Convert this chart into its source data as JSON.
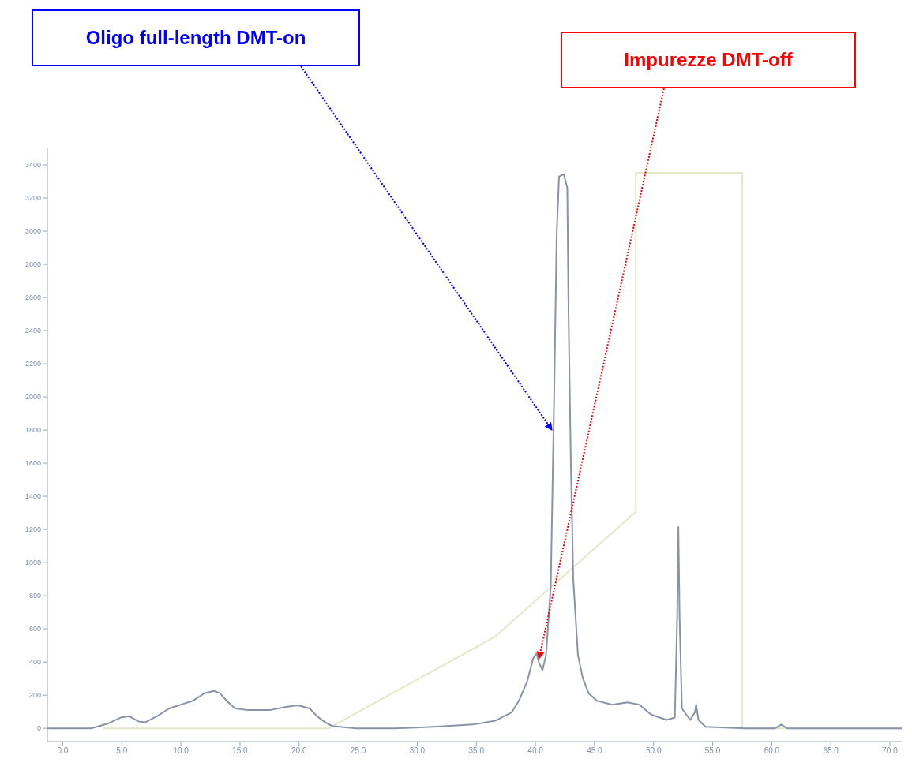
{
  "chart_data": {
    "type": "line",
    "annotations": [
      {
        "text": "Oligo full-length DMT-on",
        "x": 41.4,
        "y": 1800
      },
      {
        "text": "Impurezze DMT-off",
        "x": 40.3,
        "y": 420
      }
    ],
    "xlim": [
      -1.3,
      71
    ],
    "xticks": [
      {
        "value": 0,
        "label": "0.0"
      },
      {
        "value": 5,
        "label": "5.0"
      },
      {
        "value": 10,
        "label": "10.0"
      },
      {
        "value": 15,
        "label": "15.0"
      },
      {
        "value": 20,
        "label": "20.0"
      },
      {
        "value": 25,
        "label": "25.0"
      },
      {
        "value": 30,
        "label": "30.0"
      },
      {
        "value": 35,
        "label": "35.0"
      },
      {
        "value": 40,
        "label": "40.0"
      },
      {
        "value": 45,
        "label": "45.0"
      },
      {
        "value": 50,
        "label": "50.0"
      },
      {
        "value": 55,
        "label": "55.0"
      },
      {
        "value": 60,
        "label": "60.0"
      },
      {
        "value": 65,
        "label": "65.0"
      },
      {
        "value": 70,
        "label": "70.0"
      }
    ],
    "ylim": [
      -80,
      3500
    ],
    "yticks": [
      0,
      200,
      400,
      600,
      800,
      1000,
      1200,
      1400,
      1600,
      1800,
      2000,
      2200,
      2400,
      2600,
      2800,
      3000,
      3200,
      3400
    ],
    "marker": "none",
    "line_style": "solid",
    "series": [
      {
        "color": "#e2e8c8",
        "x": [
          3.4,
          22.5,
          36.6,
          48.5,
          48.5,
          57.5,
          57.5,
          71
        ],
        "values": [
          0,
          0,
          554,
          1307,
          3353,
          3353,
          0,
          0
        ]
      },
      {
        "color": "#8a93a8",
        "x": [
          -1.3,
          2.4,
          3.8,
          4.9,
          5.6,
          6.4,
          7.0,
          8.0,
          9.0,
          10.0,
          11.0,
          12.0,
          12.8,
          13.3,
          14.0,
          14.6,
          15.6,
          17.6,
          18.9,
          19.9,
          20.9,
          21.5,
          22.2,
          22.8,
          24.8,
          28.1,
          31.4,
          34.7,
          36.6,
          38.0,
          38.6,
          39.3,
          39.8,
          40.1,
          40.3,
          40.6,
          40.9,
          41.3,
          41.6,
          41.8,
          42.0,
          42.4,
          42.7,
          42.8,
          43.0,
          43.2,
          43.6,
          44.0,
          44.5,
          45.2,
          46.5,
          47.8,
          48.8,
          49.8,
          51.1,
          51.8,
          52.0,
          52.1,
          52.2,
          52.4,
          53.1,
          53.5,
          53.6,
          53.8,
          54.4,
          57.7,
          60.3,
          60.8,
          61.3,
          71
        ],
        "values": [
          0,
          0,
          28,
          65,
          74,
          42,
          37,
          74,
          120,
          143,
          166,
          212,
          226,
          212,
          157,
          120,
          111,
          111,
          129,
          139,
          120,
          74,
          37,
          14,
          0,
          0,
          9,
          23,
          46,
          97,
          166,
          282,
          420,
          453,
          397,
          351,
          443,
          859,
          2060,
          2984,
          3330,
          3344,
          3261,
          2522,
          1598,
          905,
          443,
          305,
          212,
          166,
          143,
          157,
          143,
          83,
          51,
          65,
          674,
          1215,
          674,
          120,
          51,
          97,
          143,
          51,
          9,
          0,
          0,
          23,
          0,
          0
        ]
      }
    ]
  }
}
